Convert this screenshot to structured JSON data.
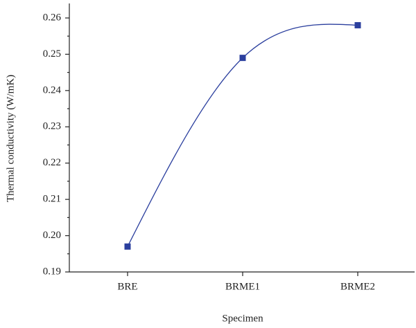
{
  "chart_data": {
    "type": "line",
    "xlabel": "Specimen",
    "ylabel": "Thermal conductivity (W/mK)",
    "categories": [
      "BRE",
      "BRME1",
      "BRME2"
    ],
    "series": [
      {
        "name": "Thermal conductivity",
        "color": "#2b3f9e",
        "values": [
          0.197,
          0.249,
          0.258
        ]
      }
    ],
    "ylim": [
      0.19,
      0.264
    ],
    "yticks": [
      0.19,
      {
        "value": 0.2,
        "label": "0.20"
      },
      0.21,
      0.22,
      0.23,
      0.24,
      0.25,
      0.26
    ],
    "smooth": true
  }
}
